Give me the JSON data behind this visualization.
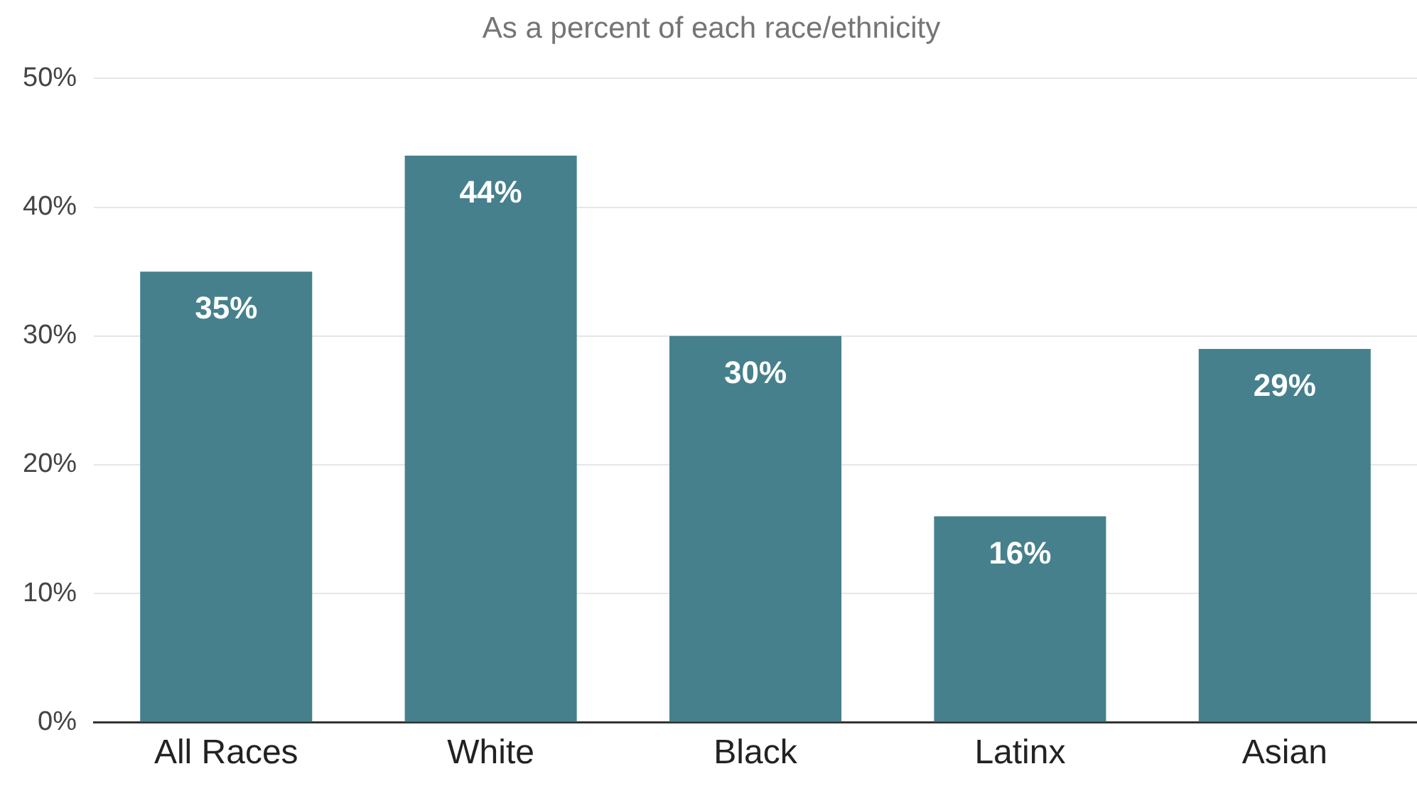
{
  "chart_data": {
    "type": "bar",
    "title": "As a percent of each race/ethnicity",
    "categories": [
      "All Races",
      "White",
      "Black",
      "Latinx",
      "Asian"
    ],
    "values": [
      35,
      44,
      30,
      16,
      29
    ],
    "color": "#46808c",
    "ylim": [
      0,
      50
    ],
    "yticks": [
      {
        "value": 0,
        "label": "0%"
      },
      {
        "value": 10,
        "label": "10%"
      },
      {
        "value": 20,
        "label": "20%"
      },
      {
        "value": 30,
        "label": "30%"
      },
      {
        "value": 40,
        "label": "40%"
      },
      {
        "value": 50,
        "label": "50%"
      }
    ],
    "grid": "y",
    "value_labels": [
      "35%",
      "44%",
      "30%",
      "16%",
      "29%"
    ]
  }
}
